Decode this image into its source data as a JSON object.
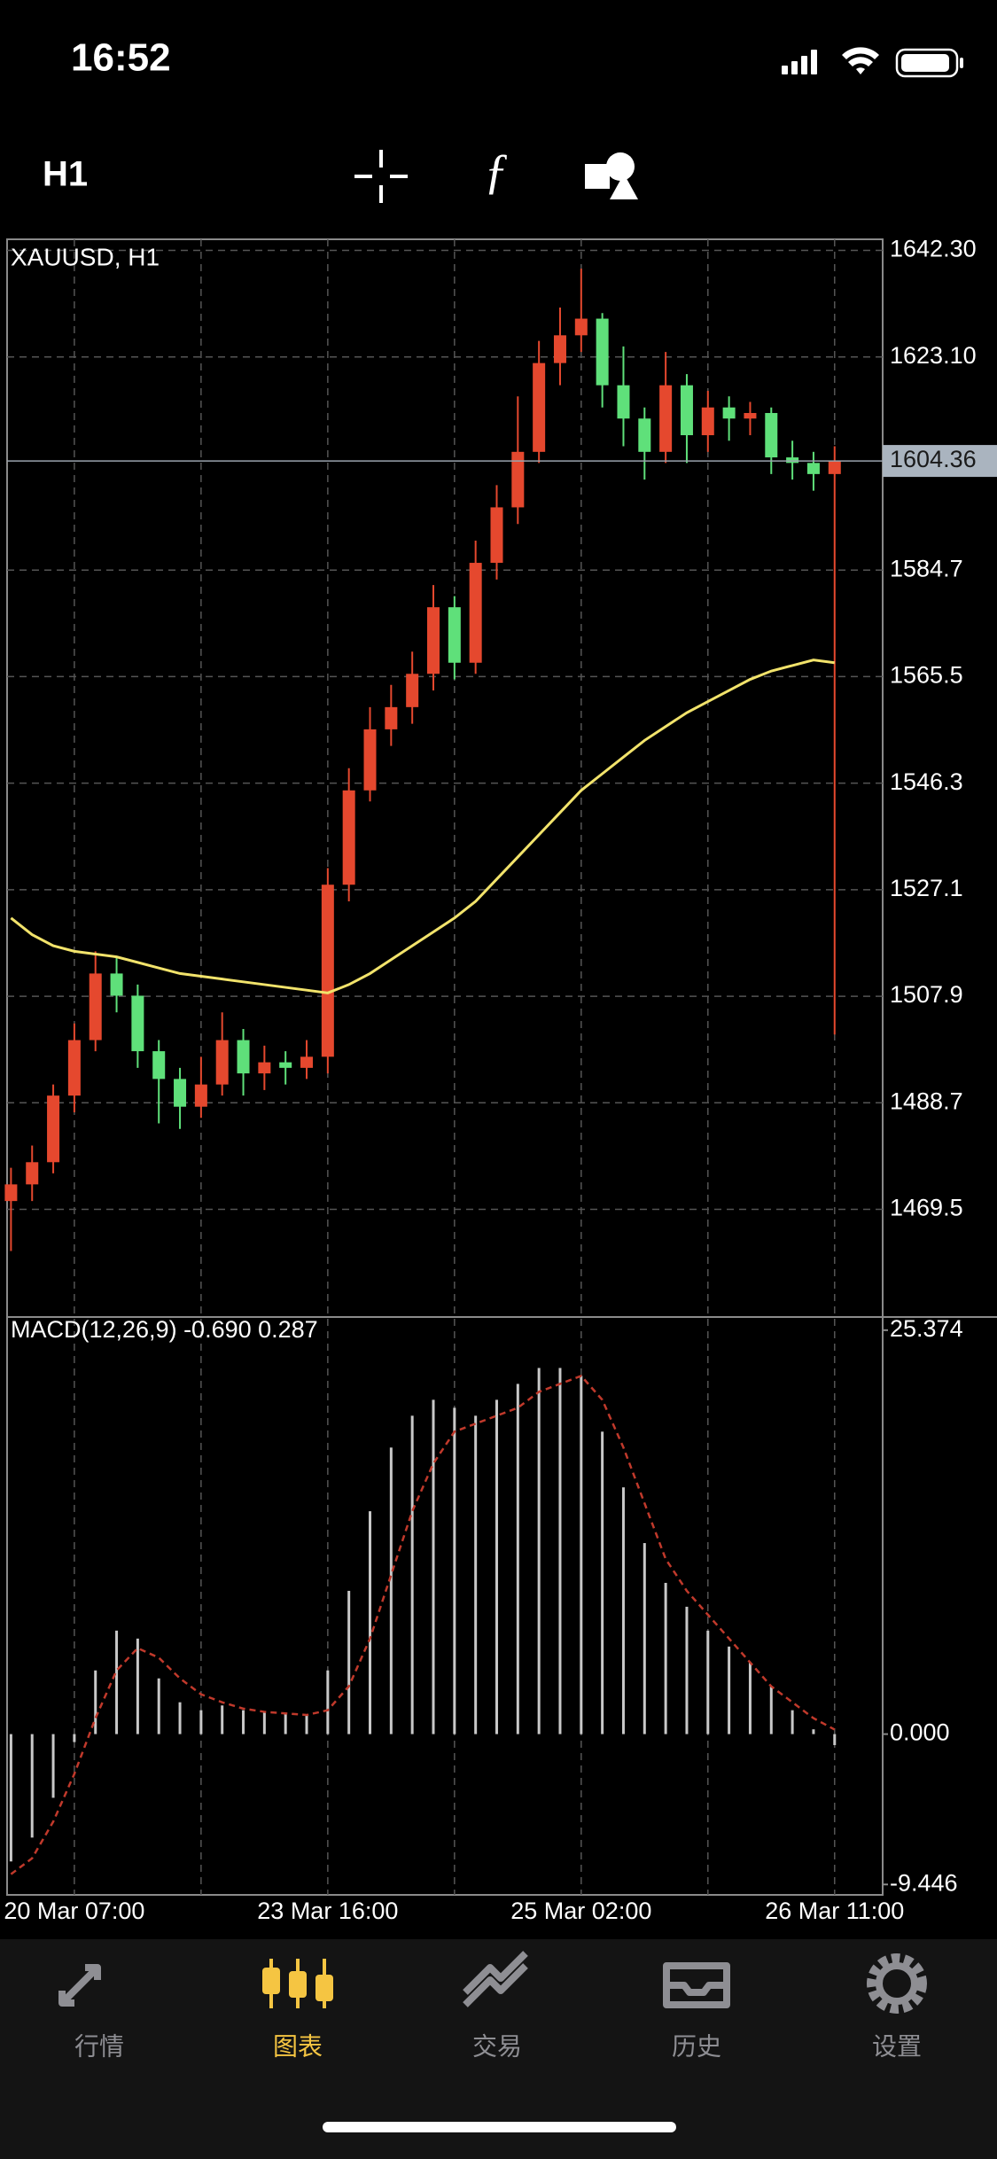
{
  "status_bar": {
    "time": "16:52"
  },
  "toolbar": {
    "timeframe": "H1"
  },
  "chart_data": [
    {
      "type": "candlestick",
      "title": "XAUUSD, H1",
      "categories": [
        null,
        null,
        null,
        "20 Mar 07:00",
        null,
        null,
        null,
        null,
        null,
        null,
        null,
        null,
        null,
        null,
        null,
        "23 Mar 16:00",
        null,
        null,
        null,
        null,
        null,
        null,
        null,
        null,
        null,
        null,
        null,
        "25 Mar 02:00",
        null,
        null,
        null,
        null,
        null,
        null,
        null,
        null,
        null,
        null,
        null,
        "26 Mar 11:00"
      ],
      "open": [
        1471,
        1474,
        1478,
        1490,
        1500,
        1512,
        1508,
        1498,
        1493,
        1488,
        1492,
        1500,
        1494,
        1496,
        1495,
        1497,
        1528,
        1545,
        1556,
        1560,
        1566,
        1578,
        1568,
        1586,
        1596,
        1606,
        1622,
        1627,
        1630,
        1618,
        1612,
        1606,
        1618,
        1609,
        1614,
        1612,
        1613,
        1605,
        1604,
        1602
      ],
      "high": [
        1477,
        1481,
        1492,
        1503,
        1516,
        1515,
        1510,
        1500,
        1495,
        1497,
        1505,
        1502,
        1499,
        1498,
        1500,
        1531,
        1549,
        1560,
        1564,
        1570,
        1582,
        1580,
        1590,
        1600,
        1616,
        1626,
        1632,
        1639,
        1631,
        1625,
        1614,
        1624,
        1620,
        1617,
        1616,
        1615,
        1614,
        1608,
        1606,
        1607
      ],
      "low": [
        1462,
        1471,
        1476,
        1487,
        1498,
        1505,
        1495,
        1485,
        1484,
        1486,
        1490,
        1490,
        1491,
        1492,
        1493,
        1494,
        1525,
        1543,
        1553,
        1557,
        1563,
        1565,
        1566,
        1583,
        1593,
        1604,
        1618,
        1624,
        1614,
        1607,
        1601,
        1604,
        1604,
        1606,
        1608,
        1609,
        1602,
        1601,
        1599,
        1501
      ],
      "close": [
        1474,
        1478,
        1490,
        1500,
        1512,
        1508,
        1498,
        1493,
        1488,
        1492,
        1500,
        1494,
        1496,
        1495,
        1497,
        1528,
        1545,
        1556,
        1560,
        1566,
        1578,
        1568,
        1586,
        1596,
        1606,
        1622,
        1627,
        1630,
        1618,
        1612,
        1606,
        1618,
        1609,
        1614,
        1612,
        1613,
        1605,
        1604,
        1602,
        1604.36
      ],
      "up_color": "#e5482e",
      "down_color": "#5fe07a",
      "ma": {
        "color": "#f2e36b",
        "values": [
          1522,
          1519,
          1517,
          1516,
          1515.5,
          1515,
          1514,
          1513,
          1512,
          1511.5,
          1511,
          1510.5,
          1510,
          1509.5,
          1509,
          1508.5,
          1510,
          1512,
          1514.5,
          1517,
          1519.5,
          1522,
          1525,
          1529,
          1533,
          1537,
          1541,
          1545,
          1548,
          1551,
          1554,
          1556.5,
          1559,
          1561,
          1563,
          1565,
          1566.5,
          1567.5,
          1568.5,
          1568
        ]
      },
      "current_price": 1604.36,
      "ylim": [
        1450.1,
        1644.3
      ],
      "yticks": [
        {
          "value": 1642.3,
          "label": "1642.30"
        },
        {
          "value": 1623.1,
          "label": "1623.10"
        },
        1584.7,
        1565.5,
        1546.3,
        1527.1,
        1507.9,
        1488.7,
        1469.5
      ],
      "grid": true
    },
    {
      "type": "macd",
      "title": "MACD(12,26,9) -0.690 0.287",
      "histogram": {
        "color": "#c8c8c8",
        "values": [
          -8,
          -6.5,
          -4,
          -0.5,
          4,
          6.5,
          6,
          3.5,
          2,
          1.5,
          1.8,
          1.5,
          1.4,
          1.3,
          1.2,
          4,
          9,
          14,
          18,
          20,
          21,
          20.5,
          20,
          21,
          22,
          23,
          23,
          22.5,
          19,
          15.5,
          12,
          9.5,
          8,
          6.5,
          5.5,
          4.5,
          3,
          1.5,
          0.3,
          -0.69
        ]
      },
      "signal": {
        "color": "#c0392b",
        "values": [
          -8.8,
          -7.8,
          -5.5,
          -2.5,
          1,
          4,
          5.4,
          4.8,
          3.5,
          2.5,
          2,
          1.6,
          1.4,
          1.3,
          1.2,
          1.5,
          3,
          6,
          10,
          14,
          17,
          19,
          19.5,
          20,
          20.5,
          21.5,
          22,
          22.5,
          21,
          18,
          14.5,
          11,
          9,
          7.5,
          6,
          4.5,
          3,
          2,
          1,
          0.287
        ]
      },
      "ylim": [
        -10.1,
        26.2
      ],
      "yticks": [
        {
          "value": 25.374,
          "label": "25.374"
        },
        {
          "value": 0,
          "label": "0.000"
        },
        {
          "value": -9.446,
          "label": "-9.446"
        }
      ]
    }
  ],
  "tab_bar": {
    "tabs": [
      "行情",
      "图表",
      "交易",
      "历史",
      "设置"
    ],
    "active": 1
  }
}
